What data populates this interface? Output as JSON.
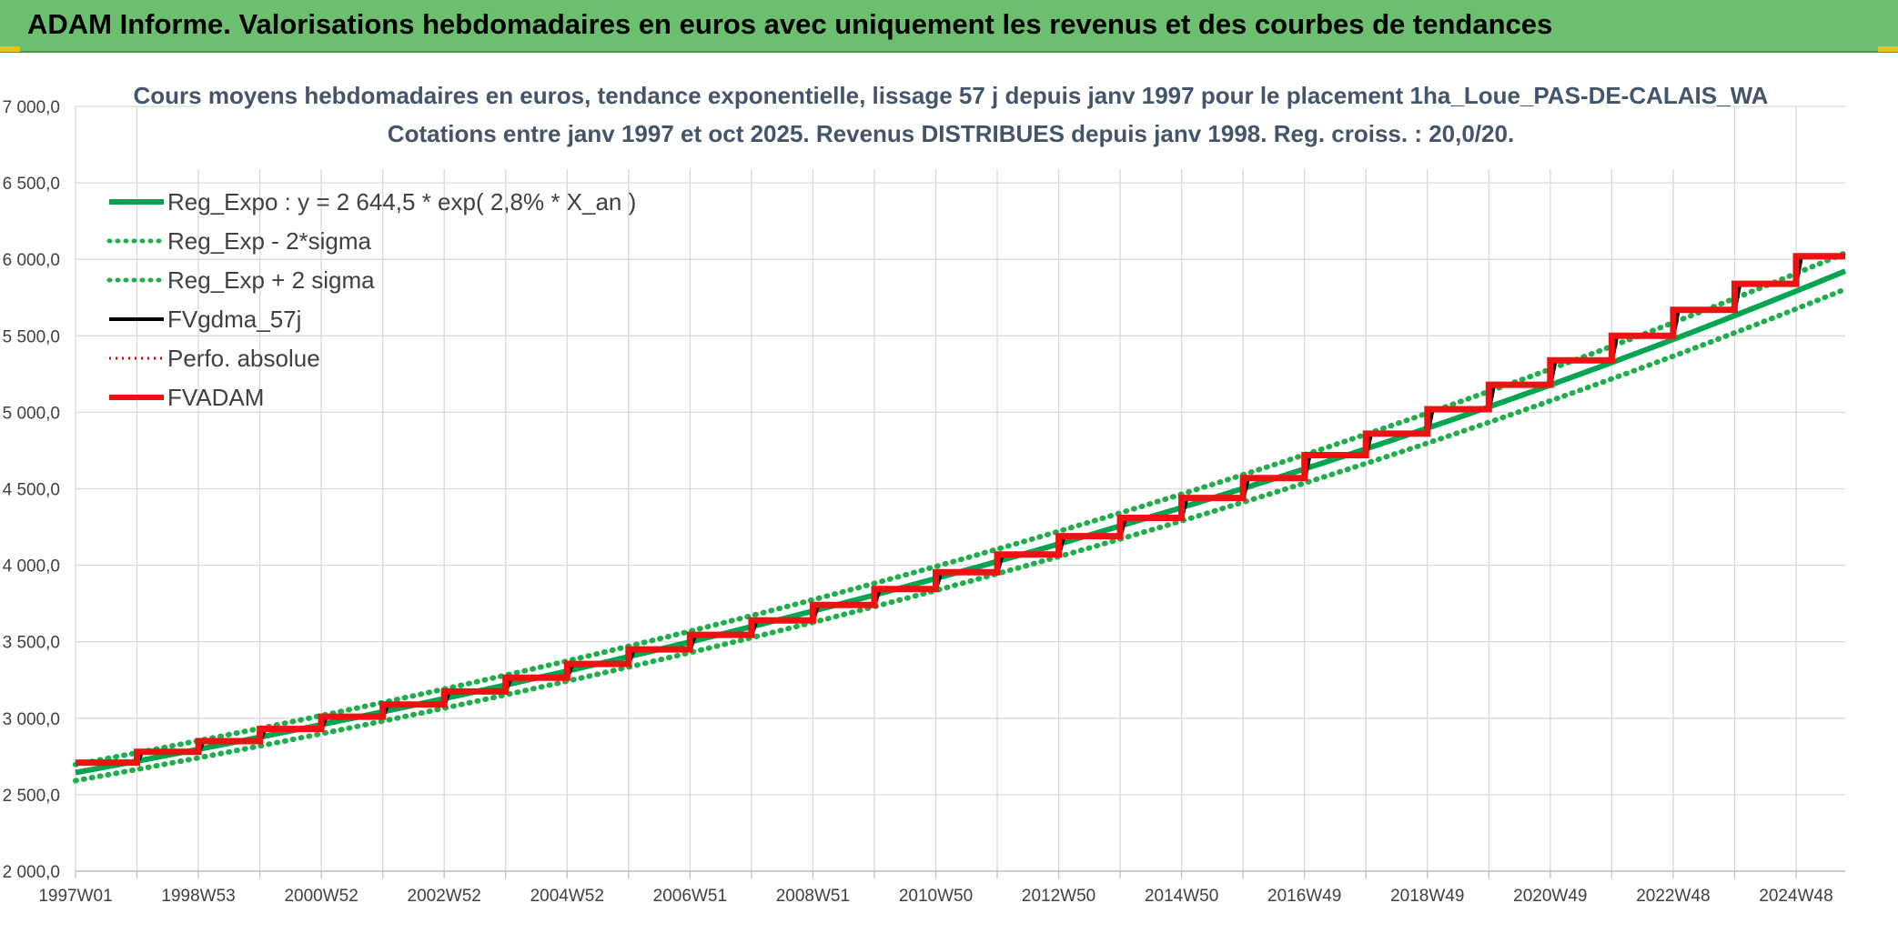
{
  "banner": {
    "title": "ADAM Informe. Valorisations hebdomadaires en euros avec uniquement les revenus et des courbes de tendances"
  },
  "colors": {
    "banner": "#6cbf6e",
    "reg_expo": "#00a550",
    "sigma": "#1fae4b",
    "fvgdma": "#000000",
    "perfo": "#e00000",
    "fvadam": "#ee1111",
    "grid": "#d9d9d9"
  },
  "chart_data": {
    "type": "line",
    "title_line1": "Cours moyens hebdomadaires en euros, tendance exponentielle, lissage 57 j depuis janv 1997 pour le placement 1ha_Loue_PAS-DE-CALAIS_WA",
    "title_line2": "Cotations entre janv 1997 et oct 2025. Revenus DISTRIBUES depuis janv 1998. Reg. croiss. : 20,0/20.",
    "ylim": [
      2000,
      7000
    ],
    "y_ticks": [
      "2 000,0",
      "2 500,0",
      "3 000,0",
      "3 500,0",
      "4 000,0",
      "4 500,0",
      "5 000,0",
      "5 500,0",
      "6 000,0",
      "6 500,0",
      "7 000,0"
    ],
    "x_range_years": [
      1997.0,
      2025.8
    ],
    "x_ticks": [
      "1997W01",
      "1998W53",
      "2000W52",
      "2002W52",
      "2004W52",
      "2006W51",
      "2008W51",
      "2010W50",
      "2012W50",
      "2014W50",
      "2016W49",
      "2018W49",
      "2020W49",
      "2022W48",
      "2024W48"
    ],
    "x_tick_years": [
      1997.0,
      1999.0,
      2001.0,
      2003.0,
      2005.0,
      2007.0,
      2009.0,
      2011.0,
      2013.0,
      2015.0,
      2017.0,
      2019.0,
      2021.0,
      2023.0,
      2025.0
    ],
    "legend_placement": "top-left",
    "grid": true,
    "regression": {
      "a": 2644.5,
      "growth": 0.028,
      "sigma_factor": 0.02
    },
    "series": [
      {
        "name": "Reg_Expo : y = 2 644,5 * exp( 2,8% *  X_an )",
        "style": "solid-thick",
        "color": "#00a550"
      },
      {
        "name": "Reg_Exp - 2*sigma",
        "style": "dotted",
        "color": "#1fae4b"
      },
      {
        "name": "Reg_Exp + 2 sigma",
        "style": "dotted",
        "color": "#1fae4b"
      },
      {
        "name": "FVgdma_57j",
        "style": "solid",
        "color": "#000000"
      },
      {
        "name": "Perfo. absolue",
        "style": "dotted",
        "color": "#e00000"
      },
      {
        "name": "FVADAM",
        "style": "step-thick",
        "color": "#ee1111"
      }
    ],
    "fvadam_steps": [
      {
        "year": 1997.0,
        "value": 2710
      },
      {
        "year": 1998.0,
        "value": 2780
      },
      {
        "year": 1999.0,
        "value": 2850
      },
      {
        "year": 2000.0,
        "value": 2930
      },
      {
        "year": 2001.0,
        "value": 3010
      },
      {
        "year": 2002.0,
        "value": 3090
      },
      {
        "year": 2003.0,
        "value": 3175
      },
      {
        "year": 2004.0,
        "value": 3265
      },
      {
        "year": 2005.0,
        "value": 3355
      },
      {
        "year": 2006.0,
        "value": 3450
      },
      {
        "year": 2007.0,
        "value": 3545
      },
      {
        "year": 2008.0,
        "value": 3640
      },
      {
        "year": 2009.0,
        "value": 3740
      },
      {
        "year": 2010.0,
        "value": 3845
      },
      {
        "year": 2011.0,
        "value": 3955
      },
      {
        "year": 2012.0,
        "value": 4070
      },
      {
        "year": 2013.0,
        "value": 4190
      },
      {
        "year": 2014.0,
        "value": 4310
      },
      {
        "year": 2015.0,
        "value": 4440
      },
      {
        "year": 2016.0,
        "value": 4570
      },
      {
        "year": 2017.0,
        "value": 4720
      },
      {
        "year": 2018.0,
        "value": 4860
      },
      {
        "year": 2019.0,
        "value": 5020
      },
      {
        "year": 2020.0,
        "value": 5180
      },
      {
        "year": 2021.0,
        "value": 5340
      },
      {
        "year": 2022.0,
        "value": 5500
      },
      {
        "year": 2023.0,
        "value": 5670
      },
      {
        "year": 2024.0,
        "value": 5840
      },
      {
        "year": 2025.0,
        "value": 6020
      }
    ]
  }
}
